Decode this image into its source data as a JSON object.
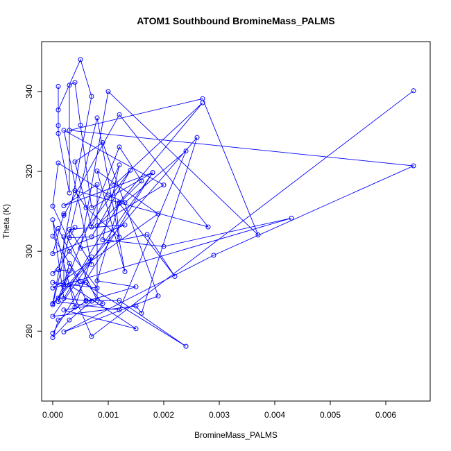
{
  "chart_data": {
    "type": "line",
    "title": "ATOM1 Southbound BromineMass_PALMS",
    "xlabel": "BromineMass_PALMS",
    "ylabel": "Theta (K)",
    "xlim": [
      -0.0002,
      0.0068
    ],
    "ylim": [
      262.5,
      352.5
    ],
    "x_ticks": [
      0.0,
      0.001,
      0.002,
      0.003,
      0.004,
      0.005,
      0.006
    ],
    "x_tick_labels": [
      "0.000",
      "0.001",
      "0.002",
      "0.003",
      "0.004",
      "0.005",
      "0.006"
    ],
    "y_ticks": [
      280,
      300,
      320,
      340
    ],
    "y_tick_labels": [
      "280",
      "300",
      "320",
      "340"
    ],
    "grid": false,
    "series_color": "#0000ff",
    "series": [
      {
        "x": [
          0.0,
          0.0018,
          0.0,
          0.0015,
          0.0016,
          0.0026,
          0.0,
          0.0008,
          0.0013,
          0.0008,
          0.0019,
          0.0,
          0.0043,
          0.002,
          0.0009,
          0.0012,
          0.0007,
          0.0004,
          0.0009,
          0.0019,
          0.0002,
          0.0029,
          0.0065,
          0.0003,
          0.0027,
          0.0037,
          0.001,
          0.0005,
          0.0017,
          0.0022,
          0.0012,
          0.0002,
          0.0,
          0.0004,
          0.0007,
          0.0,
          0.0007,
          0.0005,
          0.0001,
          0.0001,
          0.0001,
          0.0001,
          0.0003,
          0.0003,
          0.0004,
          0.0005,
          0.0007,
          0.0018,
          0.0002,
          0.0008,
          0.0008,
          0.0,
          0.0001,
          0.001,
          0.0013,
          0.0024,
          0.0012,
          0.0001,
          0.0012,
          0.0016,
          0.0008,
          0.002,
          0.0002,
          0.0007,
          0.0003,
          0.0013,
          0.0,
          0.0002,
          0.0002,
          0.0012,
          0.0028,
          0.0004,
          0.0006,
          0.0012,
          0.0011,
          0.0027,
          0.0012,
          0.0008,
          0.0015,
          0.0006,
          0.0001,
          0.0,
          0.0003,
          0.0007,
          0.0001,
          0.0003,
          0.0001,
          0.0,
          0.0014,
          0.0007,
          0.0003,
          0.0004,
          0.0002,
          0.0002,
          0.0003,
          0.0006,
          0.0012,
          0.0024,
          0.0005,
          0.0,
          0.0001,
          0.0003,
          0.0008,
          0.0,
          0.0002,
          0.0006,
          0.0009,
          0.0002,
          0.0015,
          0.0003,
          0.0007,
          0.0065
        ],
        "y": [
          279.5,
          319.7,
          283.7,
          286.3,
          284.5,
          328.5,
          286.6,
          333.4,
          294.9,
          320.1,
          309.4,
          290.8,
          308.3,
          301.2,
          302.9,
          321.6,
          306.1,
          322.4,
          327.2,
          288.8,
          279.8,
          299.0,
          321.4,
          330.3,
          338.2,
          304.1,
          340.0,
          300.8,
          304.2,
          293.7,
          312.0,
          288.2,
          307.9,
          286.0,
          298.6,
          286.9,
          338.8,
          348.0,
          335.4,
          341.3,
          331.5,
          329.5,
          314.6,
          341.6,
          342.3,
          331.6,
          310.9,
          319.7,
          311.4,
          316.7,
          287.7,
          311.3,
          322.1,
          314.1,
          312.2,
          325.1,
          285.3,
          287.4,
          326.1,
          317.6,
          306.4,
          316.6,
          330.3,
          296.7,
          305.5,
          306.6,
          299.4,
          309.4,
          309.0,
          334.2,
          306.1,
          315.2,
          310.9,
          303.5,
          316.5,
          337.2,
          312.2,
          292.6,
          291.1,
          287.5,
          282.8,
          278.4,
          282.8,
          287.5,
          288.3,
          295.1,
          295.4,
          294.4,
          320.3,
          303.6,
          303.4,
          306.0,
          303.6,
          291.6,
          297.0,
          287.7,
          287.7,
          276.2,
          292.5,
          303.8,
          305.7,
          300.0,
          290.8,
          292.2,
          291.1,
          292.2,
          286.9,
          285.3,
          280.6,
          291.6,
          278.7,
          340.2
        ]
      }
    ]
  }
}
